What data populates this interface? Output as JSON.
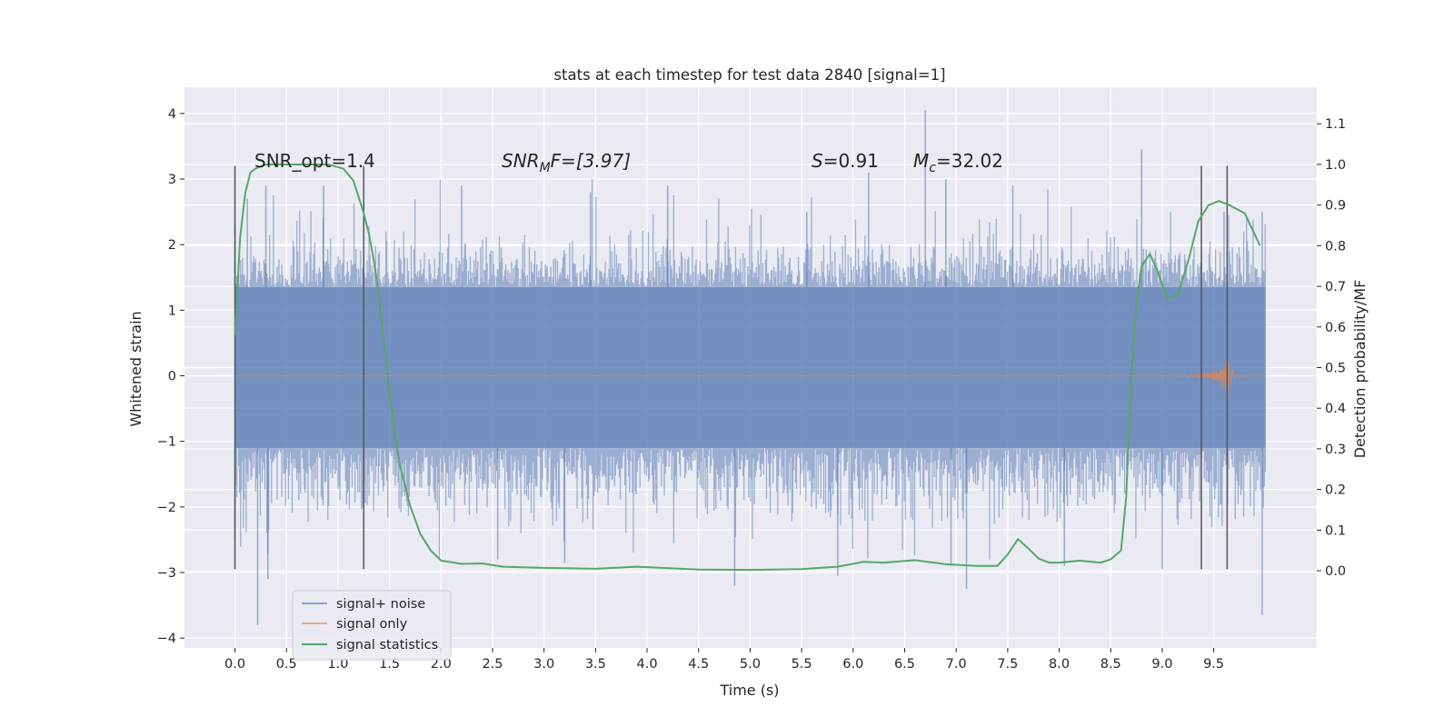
{
  "chart_data": {
    "type": "line",
    "title": "stats at each timestep for test data 2840 [signal=1]",
    "xlabel": "Time (s)",
    "ylabel_left": "Whitened strain",
    "ylabel_right": "Detection probability/MF",
    "xlim": [
      -0.49,
      10.5
    ],
    "ylim_left": [
      -4.15,
      4.4
    ],
    "ylim_right": [
      -0.19,
      1.19
    ],
    "grid": true,
    "x_ticks": [
      "0.0",
      "0.5",
      "1.0",
      "1.5",
      "2.0",
      "2.5",
      "3.0",
      "3.5",
      "4.0",
      "4.5",
      "5.0",
      "5.5",
      "6.0",
      "6.5",
      "7.0",
      "7.5",
      "8.0",
      "8.5",
      "9.0",
      "9.5"
    ],
    "y_ticks_left": [
      "−4",
      "−3",
      "−2",
      "−1",
      "0",
      "1",
      "2",
      "3",
      "4"
    ],
    "y_ticks_right": [
      "0.0",
      "0.1",
      "0.2",
      "0.3",
      "0.4",
      "0.5",
      "0.6",
      "0.7",
      "0.8",
      "0.9",
      "1.0",
      "1.1"
    ],
    "annotations": {
      "snr_opt": "SNR_opt=1.4",
      "snr_mf_main": "SNR",
      "snr_mf_sub": "M",
      "snr_mf_rest": "F=[3.97]",
      "s_main": "S",
      "s_rest": "=0.91",
      "mc_main": "M",
      "mc_sub": "c",
      "mc_rest": "=32.02"
    },
    "vertical_lines_x": [
      0.0,
      1.25,
      9.38,
      9.63
    ],
    "vertical_lines_range_left": [
      -2.95,
      3.2
    ],
    "noise_span_x": [
      0.0,
      10.0
    ],
    "noise_band_left": [
      -1.1,
      1.35
    ],
    "noise_peaks_left": [
      {
        "x": 0.0,
        "y": 2.3
      },
      {
        "x": 0.12,
        "y": 2.7
      },
      {
        "x": 0.3,
        "y": 2.9
      },
      {
        "x": 0.86,
        "y": 2.9
      },
      {
        "x": 2.2,
        "y": 2.9
      },
      {
        "x": 3.45,
        "y": 2.8
      },
      {
        "x": 4.2,
        "y": 2.9
      },
      {
        "x": 5.55,
        "y": 2.5
      },
      {
        "x": 6.15,
        "y": 3.1
      },
      {
        "x": 6.7,
        "y": 4.05
      },
      {
        "x": 6.9,
        "y": 3.0
      },
      {
        "x": 7.55,
        "y": 2.9
      },
      {
        "x": 8.8,
        "y": 3.45
      },
      {
        "x": 9.6,
        "y": 2.5
      },
      {
        "x": 9.97,
        "y": 2.5
      }
    ],
    "noise_troughs_left": [
      {
        "x": 0.0,
        "y": -2.5
      },
      {
        "x": 0.22,
        "y": -3.8
      },
      {
        "x": 0.32,
        "y": -3.1
      },
      {
        "x": 2.55,
        "y": -2.8
      },
      {
        "x": 3.2,
        "y": -2.85
      },
      {
        "x": 4.85,
        "y": -3.2
      },
      {
        "x": 5.85,
        "y": -3.05
      },
      {
        "x": 6.95,
        "y": -2.9
      },
      {
        "x": 7.1,
        "y": -3.25
      },
      {
        "x": 8.05,
        "y": -2.9
      },
      {
        "x": 9.0,
        "y": -2.95
      },
      {
        "x": 9.97,
        "y": -3.65
      }
    ],
    "series": [
      {
        "name": "signal+ noise",
        "color": "#4c72b0",
        "axis": "left"
      },
      {
        "name": "signal only",
        "color": "#dd8452",
        "axis": "left",
        "x": [
          0.0,
          9.0,
          9.3,
          9.45,
          9.55,
          9.6,
          9.63,
          9.64,
          9.66,
          9.7,
          9.8,
          10.0
        ],
        "envelope": [
          0.0,
          0.0,
          0.02,
          0.05,
          0.1,
          0.2,
          0.33,
          0.3,
          0.12,
          0.03,
          0.0,
          0.0
        ]
      },
      {
        "name": "signal statistics",
        "color": "#55a868",
        "axis": "right",
        "x": [
          0.0,
          0.05,
          0.1,
          0.15,
          0.2,
          0.3,
          0.5,
          0.7,
          0.9,
          1.05,
          1.15,
          1.25,
          1.3,
          1.35,
          1.4,
          1.45,
          1.5,
          1.55,
          1.6,
          1.7,
          1.8,
          1.9,
          2.0,
          2.2,
          2.4,
          2.6,
          3.0,
          3.5,
          3.9,
          4.5,
          5.0,
          5.5,
          5.85,
          6.1,
          6.3,
          6.6,
          6.9,
          7.2,
          7.4,
          7.5,
          7.6,
          7.7,
          7.8,
          7.9,
          8.0,
          8.2,
          8.4,
          8.5,
          8.6,
          8.65,
          8.7,
          8.75,
          8.8,
          8.88,
          8.95,
          9.05,
          9.15,
          9.25,
          9.35,
          9.45,
          9.55,
          9.65,
          9.8,
          9.95
        ],
        "values": [
          0.58,
          0.82,
          0.93,
          0.98,
          0.99,
          1.0,
          1.0,
          1.0,
          1.0,
          0.99,
          0.96,
          0.88,
          0.83,
          0.76,
          0.67,
          0.55,
          0.44,
          0.34,
          0.26,
          0.16,
          0.09,
          0.05,
          0.025,
          0.017,
          0.018,
          0.01,
          0.007,
          0.005,
          0.01,
          0.003,
          0.002,
          0.004,
          0.01,
          0.022,
          0.02,
          0.026,
          0.016,
          0.012,
          0.012,
          0.04,
          0.078,
          0.055,
          0.03,
          0.02,
          0.02,
          0.025,
          0.02,
          0.028,
          0.05,
          0.18,
          0.48,
          0.66,
          0.75,
          0.78,
          0.74,
          0.67,
          0.68,
          0.76,
          0.86,
          0.9,
          0.91,
          0.9,
          0.88,
          0.8
        ]
      }
    ],
    "legend_position": "lower-left"
  },
  "colors": {
    "plot_background": "#eaeaf2",
    "grid": "#ffffff",
    "vertical_line": "#555555"
  }
}
